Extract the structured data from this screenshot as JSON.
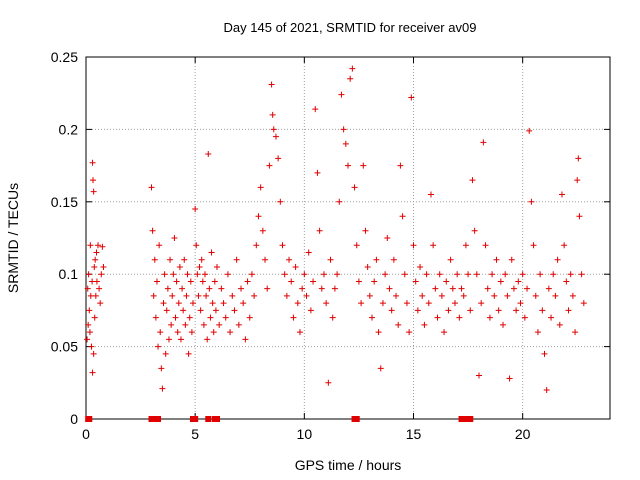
{
  "chart_data": {
    "type": "scatter",
    "title": "Day 145 of 2021, SRMTID for receiver av09",
    "xlabel": "GPS time / hours",
    "ylabel": "SRMTID / TECUs",
    "xlim": [
      0,
      24
    ],
    "ylim": [
      0,
      0.25
    ],
    "xticks": [
      0,
      5,
      10,
      15,
      20
    ],
    "xtick_labels": [
      "0",
      "5",
      "10",
      "15",
      "20"
    ],
    "yticks": [
      0,
      0.05,
      0.1,
      0.15,
      0.2,
      0.25
    ],
    "ytick_labels": [
      "0",
      "0.05",
      "0.1",
      "0.15",
      "0.2",
      "0.25"
    ],
    "grid": true,
    "marker": "+",
    "color": "#e00000",
    "series": [
      {
        "name": "SRMTID av09",
        "points": [
          [
            0.05,
            0.055
          ],
          [
            0.08,
            0.09
          ],
          [
            0.1,
            0.065
          ],
          [
            0.12,
            0.1
          ],
          [
            0.15,
            0.075
          ],
          [
            0.18,
            0.06
          ],
          [
            0.2,
            0.12
          ],
          [
            0.22,
            0.085
          ],
          [
            0.25,
            0.05
          ],
          [
            0.28,
            0.095
          ],
          [
            0.3,
            0.177
          ],
          [
            0.32,
            0.165
          ],
          [
            0.35,
            0.157
          ],
          [
            0.38,
            0.105
          ],
          [
            0.4,
            0.07
          ],
          [
            0.42,
            0.11
          ],
          [
            0.45,
            0.085
          ],
          [
            0.48,
            0.115
          ],
          [
            0.5,
            0.095
          ],
          [
            0.55,
            0.12
          ],
          [
            0.6,
            0.09
          ],
          [
            0.65,
            0.08
          ],
          [
            0.7,
            0.1
          ],
          [
            0.75,
            0.119
          ],
          [
            0.8,
            0.105
          ],
          [
            0.3,
            0.032
          ],
          [
            0.35,
            0.045
          ],
          [
            3.0,
            0.16
          ],
          [
            3.05,
            0.13
          ],
          [
            3.1,
            0.085
          ],
          [
            3.15,
            0.11
          ],
          [
            3.2,
            0.07
          ],
          [
            3.25,
            0.095
          ],
          [
            3.3,
            0.05
          ],
          [
            3.35,
            0.12
          ],
          [
            3.4,
            0.06
          ],
          [
            3.45,
            0.035
          ],
          [
            3.5,
            0.021
          ],
          [
            3.55,
            0.08
          ],
          [
            3.6,
            0.1
          ],
          [
            3.65,
            0.045
          ],
          [
            3.7,
            0.075
          ],
          [
            3.75,
            0.09
          ],
          [
            3.8,
            0.055
          ],
          [
            3.85,
            0.11
          ],
          [
            3.9,
            0.065
          ],
          [
            3.95,
            0.085
          ],
          [
            4.0,
            0.1
          ],
          [
            4.05,
            0.125
          ],
          [
            4.1,
            0.07
          ],
          [
            4.15,
            0.095
          ],
          [
            4.2,
            0.06
          ],
          [
            4.25,
            0.08
          ],
          [
            4.3,
            0.105
          ],
          [
            4.35,
            0.055
          ],
          [
            4.4,
            0.09
          ],
          [
            4.45,
            0.075
          ],
          [
            4.5,
            0.11
          ],
          [
            4.55,
            0.065
          ],
          [
            4.6,
            0.085
          ],
          [
            4.65,
            0.1
          ],
          [
            4.7,
            0.045
          ],
          [
            4.75,
            0.07
          ],
          [
            4.8,
            0.095
          ],
          [
            4.85,
            0.06
          ],
          [
            4.9,
            0.08
          ],
          [
            5.0,
            0.145
          ],
          [
            5.05,
            0.12
          ],
          [
            5.1,
            0.1
          ],
          [
            5.15,
            0.085
          ],
          [
            5.2,
            0.105
          ],
          [
            5.25,
            0.075
          ],
          [
            5.3,
            0.11
          ],
          [
            5.35,
            0.095
          ],
          [
            5.4,
            0.065
          ],
          [
            5.45,
            0.1
          ],
          [
            5.5,
            0.085
          ],
          [
            5.55,
            0.055
          ],
          [
            5.6,
            0.183
          ],
          [
            5.65,
            0.09
          ],
          [
            5.7,
            0.07
          ],
          [
            5.75,
            0.115
          ],
          [
            5.8,
            0.08
          ],
          [
            5.85,
            0.06
          ],
          [
            5.9,
            0.095
          ],
          [
            5.95,
            0.075
          ],
          [
            6.0,
            0.105
          ],
          [
            6.1,
            0.065
          ],
          [
            6.2,
            0.09
          ],
          [
            6.3,
            0.08
          ],
          [
            6.4,
            0.07
          ],
          [
            6.5,
            0.1
          ],
          [
            6.6,
            0.06
          ],
          [
            6.7,
            0.085
          ],
          [
            6.8,
            0.075
          ],
          [
            6.9,
            0.11
          ],
          [
            7.0,
            0.065
          ],
          [
            7.1,
            0.09
          ],
          [
            7.2,
            0.08
          ],
          [
            7.3,
            0.055
          ],
          [
            7.4,
            0.095
          ],
          [
            7.5,
            0.07
          ],
          [
            7.6,
            0.1
          ],
          [
            7.7,
            0.085
          ],
          [
            7.8,
            0.12
          ],
          [
            7.9,
            0.14
          ],
          [
            8.0,
            0.16
          ],
          [
            8.1,
            0.13
          ],
          [
            8.2,
            0.11
          ],
          [
            8.3,
            0.09
          ],
          [
            8.4,
            0.175
          ],
          [
            8.5,
            0.231
          ],
          [
            8.55,
            0.21
          ],
          [
            8.6,
            0.2
          ],
          [
            8.7,
            0.195
          ],
          [
            8.8,
            0.18
          ],
          [
            8.9,
            0.15
          ],
          [
            9.0,
            0.12
          ],
          [
            9.1,
            0.1
          ],
          [
            9.2,
            0.085
          ],
          [
            9.3,
            0.11
          ],
          [
            9.4,
            0.095
          ],
          [
            9.5,
            0.07
          ],
          [
            9.6,
            0.105
          ],
          [
            9.7,
            0.08
          ],
          [
            9.8,
            0.06
          ],
          [
            9.9,
            0.09
          ],
          [
            10.0,
            0.1
          ],
          [
            10.1,
            0.085
          ],
          [
            10.2,
            0.115
          ],
          [
            10.3,
            0.075
          ],
          [
            10.4,
            0.095
          ],
          [
            10.5,
            0.214
          ],
          [
            10.6,
            0.17
          ],
          [
            10.7,
            0.13
          ],
          [
            10.8,
            0.09
          ],
          [
            10.9,
            0.1
          ],
          [
            11.0,
            0.08
          ],
          [
            11.1,
            0.025
          ],
          [
            11.2,
            0.11
          ],
          [
            11.3,
            0.07
          ],
          [
            11.4,
            0.09
          ],
          [
            11.5,
            0.1
          ],
          [
            11.6,
            0.15
          ],
          [
            11.7,
            0.224
          ],
          [
            11.8,
            0.2
          ],
          [
            11.9,
            0.19
          ],
          [
            12.0,
            0.175
          ],
          [
            12.1,
            0.235
          ],
          [
            12.2,
            0.242
          ],
          [
            12.3,
            0.16
          ],
          [
            12.4,
            0.12
          ],
          [
            12.5,
            0.095
          ],
          [
            12.6,
            0.08
          ],
          [
            12.7,
            0.175
          ],
          [
            12.8,
            0.13
          ],
          [
            12.9,
            0.105
          ],
          [
            13.0,
            0.085
          ],
          [
            13.1,
            0.07
          ],
          [
            13.2,
            0.095
          ],
          [
            13.3,
            0.11
          ],
          [
            13.4,
            0.06
          ],
          [
            13.5,
            0.035
          ],
          [
            13.6,
            0.08
          ],
          [
            13.7,
            0.1
          ],
          [
            13.8,
            0.125
          ],
          [
            13.9,
            0.09
          ],
          [
            14.0,
            0.075
          ],
          [
            14.1,
            0.11
          ],
          [
            14.2,
            0.085
          ],
          [
            14.3,
            0.065
          ],
          [
            14.4,
            0.175
          ],
          [
            14.5,
            0.14
          ],
          [
            14.6,
            0.1
          ],
          [
            14.7,
            0.08
          ],
          [
            14.8,
            0.06
          ],
          [
            14.9,
            0.222
          ],
          [
            15.0,
            0.12
          ],
          [
            15.1,
            0.095
          ],
          [
            15.2,
            0.075
          ],
          [
            15.3,
            0.105
          ],
          [
            15.4,
            0.085
          ],
          [
            15.5,
            0.065
          ],
          [
            15.6,
            0.1
          ],
          [
            15.7,
            0.08
          ],
          [
            15.8,
            0.155
          ],
          [
            15.9,
            0.12
          ],
          [
            16.0,
            0.09
          ],
          [
            16.1,
            0.07
          ],
          [
            16.2,
            0.1
          ],
          [
            16.3,
            0.085
          ],
          [
            16.4,
            0.06
          ],
          [
            16.5,
            0.095
          ],
          [
            16.6,
            0.075
          ],
          [
            16.7,
            0.11
          ],
          [
            16.8,
            0.09
          ],
          [
            16.9,
            0.08
          ],
          [
            17.0,
            0.1
          ],
          [
            17.1,
            0.07
          ],
          [
            17.2,
            0.09
          ],
          [
            17.3,
            0.085
          ],
          [
            17.4,
            0.12
          ],
          [
            17.5,
            0.1
          ],
          [
            17.6,
            0.075
          ],
          [
            17.7,
            0.165
          ],
          [
            17.8,
            0.13
          ],
          [
            17.9,
            0.1
          ],
          [
            18.0,
            0.03
          ],
          [
            18.1,
            0.08
          ],
          [
            18.2,
            0.191
          ],
          [
            18.3,
            0.12
          ],
          [
            18.4,
            0.09
          ],
          [
            18.5,
            0.07
          ],
          [
            18.6,
            0.1
          ],
          [
            18.7,
            0.085
          ],
          [
            18.8,
            0.11
          ],
          [
            18.9,
            0.075
          ],
          [
            19.0,
            0.095
          ],
          [
            19.1,
            0.065
          ],
          [
            19.2,
            0.1
          ],
          [
            19.3,
            0.085
          ],
          [
            19.4,
            0.028
          ],
          [
            19.5,
            0.11
          ],
          [
            19.6,
            0.09
          ],
          [
            19.7,
            0.075
          ],
          [
            19.8,
            0.095
          ],
          [
            19.9,
            0.08
          ],
          [
            20.0,
            0.1
          ],
          [
            20.1,
            0.07
          ],
          [
            20.2,
            0.09
          ],
          [
            20.3,
            0.199
          ],
          [
            20.4,
            0.15
          ],
          [
            20.5,
            0.12
          ],
          [
            20.6,
            0.085
          ],
          [
            20.7,
            0.06
          ],
          [
            20.8,
            0.1
          ],
          [
            20.9,
            0.075
          ],
          [
            21.0,
            0.045
          ],
          [
            21.1,
            0.02
          ],
          [
            21.2,
            0.09
          ],
          [
            21.3,
            0.07
          ],
          [
            21.4,
            0.1
          ],
          [
            21.5,
            0.085
          ],
          [
            21.6,
            0.11
          ],
          [
            21.7,
            0.065
          ],
          [
            21.8,
            0.155
          ],
          [
            21.9,
            0.12
          ],
          [
            22.0,
            0.095
          ],
          [
            22.1,
            0.075
          ],
          [
            22.2,
            0.1
          ],
          [
            22.3,
            0.085
          ],
          [
            22.4,
            0.06
          ],
          [
            22.5,
            0.165
          ],
          [
            22.55,
            0.18
          ],
          [
            22.6,
            0.14
          ],
          [
            22.7,
            0.1
          ],
          [
            22.8,
            0.08
          ]
        ]
      }
    ],
    "zero_points_x": [
      0.1,
      0.15,
      3.0,
      3.2,
      3.3,
      4.9,
      5.0,
      5.6,
      5.9,
      6.0,
      12.3,
      12.4,
      17.2,
      17.3,
      17.4,
      17.5,
      17.6
    ]
  }
}
